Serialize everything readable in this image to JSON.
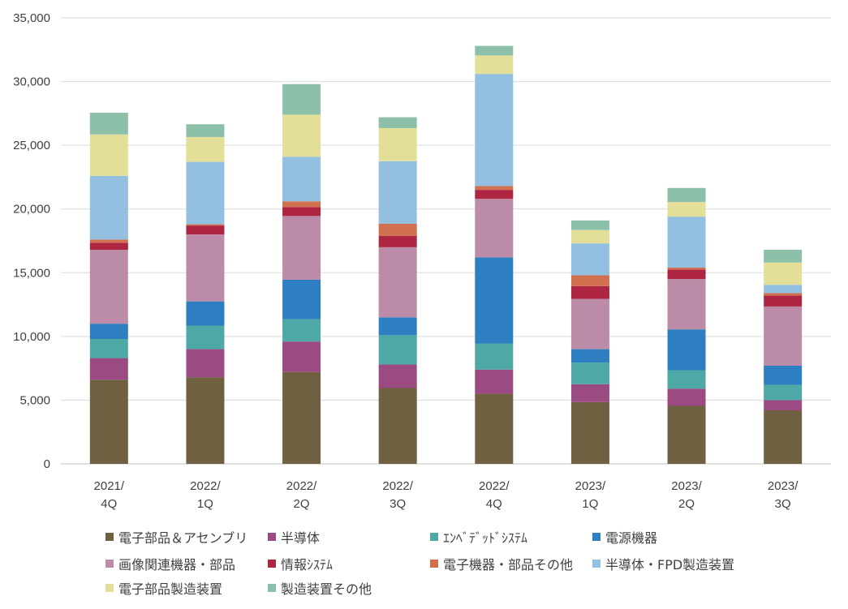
{
  "chart_data": {
    "type": "bar",
    "stacked": true,
    "categories": [
      [
        "2021/",
        "4Q"
      ],
      [
        "2022/",
        "1Q"
      ],
      [
        "2022/",
        "2Q"
      ],
      [
        "2022/",
        "3Q"
      ],
      [
        "2022/",
        "4Q"
      ],
      [
        "2023/",
        "1Q"
      ],
      [
        "2023/",
        "2Q"
      ],
      [
        "2023/",
        "3Q"
      ]
    ],
    "ylim": [
      0,
      35000
    ],
    "yticks": [
      0,
      5000,
      10000,
      15000,
      20000,
      25000,
      30000,
      35000
    ],
    "ytick_labels": [
      "0",
      "5,000",
      "10,000",
      "15,000",
      "20,000",
      "25,000",
      "30,000",
      "35,000"
    ],
    "grid": true,
    "legend_position": "bottom",
    "series": [
      {
        "name": "電子部品＆アセンブリ",
        "color": "#6e6040",
        "values": [
          6600,
          6800,
          7200,
          5950,
          5500,
          4850,
          4550,
          4200
        ]
      },
      {
        "name": "半導体",
        "color": "#9b4a82",
        "values": [
          1700,
          2200,
          2400,
          1850,
          1900,
          1400,
          1350,
          800
        ]
      },
      {
        "name": "ｴﾝﾍﾞﾃﾞｯﾄﾞｼｽﾃﾑ",
        "color": "#4ea9a6",
        "values": [
          1500,
          1850,
          1750,
          2300,
          2050,
          1700,
          1450,
          1200
        ]
      },
      {
        "name": "電源機器",
        "color": "#2e7fc1",
        "values": [
          1200,
          1900,
          3100,
          1400,
          6750,
          1050,
          3200,
          1500
        ]
      },
      {
        "name": "画像関連機器・部品",
        "color": "#bb8ba8",
        "values": [
          5800,
          5250,
          5000,
          5500,
          4600,
          3950,
          3950,
          4650
        ]
      },
      {
        "name": "情報ｼｽﾃﾑ",
        "color": "#ad2540",
        "values": [
          550,
          700,
          700,
          900,
          700,
          1000,
          750,
          850
        ]
      },
      {
        "name": "電子機器・部品その他",
        "color": "#d0704e",
        "values": [
          250,
          100,
          450,
          950,
          300,
          850,
          150,
          200
        ]
      },
      {
        "name": "半導体・FPD製造装置",
        "color": "#93c0e0",
        "values": [
          5000,
          4900,
          3500,
          4900,
          8800,
          2500,
          4000,
          650
        ]
      },
      {
        "name": "電子部品製造装置",
        "color": "#e3df98",
        "values": [
          3250,
          1950,
          3300,
          2600,
          1450,
          1050,
          1150,
          1750
        ]
      },
      {
        "name": "製造装置その他",
        "color": "#8cc0a8",
        "values": [
          1700,
          1000,
          2400,
          850,
          750,
          750,
          1100,
          1000
        ]
      }
    ]
  }
}
